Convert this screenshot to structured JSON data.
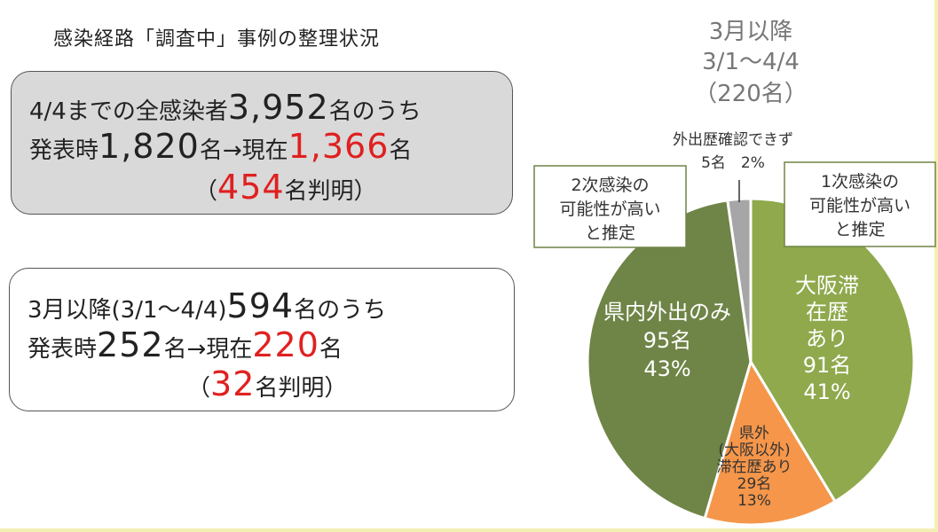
{
  "title": "感染経路「調査中」事例の整理状況",
  "box1": {
    "line1_pre": "4/4までの全感染者",
    "line1_num": "3,952",
    "line1_post": "名のうち",
    "line2_pre": "発表時",
    "line2_num1": "1,820",
    "line2_mid": "名→現在",
    "line2_num2": "1,366",
    "line2_post": "名",
    "line3_open": "（",
    "line3_num": "454",
    "line3_post": "名判明）"
  },
  "box2": {
    "line1_pre": "3月以降(3/1～4/4)",
    "line1_num": "594",
    "line1_post": "名のうち",
    "line2_pre": "発表時",
    "line2_num1": "252",
    "line2_mid": "名→現在",
    "line2_num2": "220",
    "line2_post": "名",
    "line3_open": "（",
    "line3_num": "32",
    "line3_post": "名判明）"
  },
  "chart_data": {
    "type": "pie",
    "title": [
      "3月以降",
      "3/1～4/4",
      "（220名）"
    ],
    "total": 220,
    "slices": [
      {
        "key": "osaka",
        "labels": [
          "大阪滞",
          "在歴",
          "あり",
          "91名",
          "41%"
        ],
        "value": 91,
        "percent": 41,
        "color": "#8fa94c"
      },
      {
        "key": "kengai",
        "labels": [
          "県外",
          "(大阪以外)",
          "滞在歴あり",
          "29名",
          "13%"
        ],
        "value": 29,
        "percent": 13,
        "color": "#f5964a"
      },
      {
        "key": "kennai",
        "labels": [
          "県内外出のみ",
          "95名",
          "43%"
        ],
        "value": 95,
        "percent": 43,
        "color": "#6f8447"
      },
      {
        "key": "unknown",
        "labels": [
          "外出歴確認できず",
          "5名　2%"
        ],
        "value": 5,
        "percent": 2,
        "color": "#a6a6a6"
      }
    ],
    "callouts": [
      {
        "key": "primary",
        "lines": [
          "1次感染の",
          "可能性が高い",
          "と推定"
        ]
      },
      {
        "key": "secondary",
        "lines": [
          "2次感染の",
          "可能性が高い",
          "と推定"
        ]
      }
    ]
  }
}
